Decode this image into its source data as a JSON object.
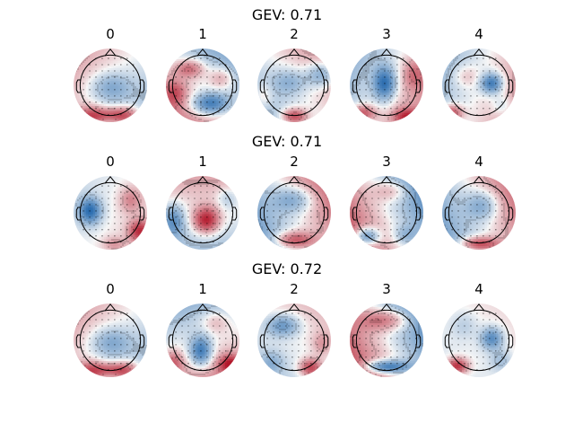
{
  "colors": {
    "neg": "#2166ac",
    "pos": "#b2182b",
    "mid": "#f7f7f7",
    "outline": "#000000"
  },
  "rows": [
    {
      "title": "GEV: 0.71",
      "maps": [
        {
          "label": "0",
          "background": [
            -0.15,
            -0.2
          ],
          "blobs": [
            [
              0,
              0.05,
              -0.45,
              0.55,
              0.4
            ],
            [
              -0.55,
              0.85,
              0.65,
              0.4,
              0.28
            ],
            [
              0.45,
              0.85,
              0.65,
              0.4,
              0.28
            ],
            [
              0,
              0.8,
              0.5,
              0.5,
              0.2
            ]
          ]
        },
        {
          "label": "1",
          "background": [
            0.35,
            -0.25
          ],
          "blobs": [
            [
              0.2,
              0.5,
              -0.9,
              0.5,
              0.3
            ],
            [
              -0.35,
              -0.45,
              0.6,
              0.4,
              0.25
            ],
            [
              0.5,
              -0.2,
              0.4,
              0.35,
              0.3
            ],
            [
              -0.75,
              0.2,
              0.5,
              0.3,
              0.35
            ]
          ]
        },
        {
          "label": "2",
          "background": [
            -0.2,
            0.25
          ],
          "blobs": [
            [
              0,
              0.85,
              0.85,
              0.35,
              0.22
            ],
            [
              0.75,
              -0.3,
              -0.6,
              0.4,
              0.35
            ],
            [
              -0.1,
              -0.1,
              -0.4,
              0.5,
              0.35
            ],
            [
              -0.85,
              0.3,
              0.3,
              0.25,
              0.35
            ]
          ]
        },
        {
          "label": "3",
          "background": [
            0.15,
            0.3
          ],
          "blobs": [
            [
              -0.05,
              -0.05,
              -0.9,
              0.3,
              0.45
            ],
            [
              -0.65,
              0.75,
              0.7,
              0.35,
              0.22
            ],
            [
              0.55,
              0.85,
              0.7,
              0.35,
              0.22
            ],
            [
              0.75,
              -0.3,
              0.4,
              0.3,
              0.4
            ]
          ]
        },
        {
          "label": "4",
          "background": [
            0.1,
            0.3
          ],
          "blobs": [
            [
              0.35,
              -0.05,
              -0.9,
              0.3,
              0.28
            ],
            [
              -0.75,
              0.75,
              0.8,
              0.3,
              0.22
            ],
            [
              -0.35,
              -0.25,
              0.25,
              0.35,
              0.3
            ],
            [
              0.65,
              0.55,
              -0.3,
              0.3,
              0.3
            ]
          ]
        }
      ]
    },
    {
      "title": "GEV: 0.71",
      "maps": [
        {
          "label": "0",
          "background": [
            0.05,
            0.1
          ],
          "blobs": [
            [
              -0.55,
              -0.05,
              -0.9,
              0.3,
              0.35
            ],
            [
              0.8,
              0.5,
              0.8,
              0.3,
              0.3
            ],
            [
              0.55,
              -0.35,
              0.4,
              0.3,
              0.35
            ],
            [
              0.1,
              0.85,
              0.3,
              0.3,
              0.2
            ]
          ]
        },
        {
          "label": "1",
          "background": [
            -0.3,
            0.0
          ],
          "blobs": [
            [
              0.1,
              0.2,
              1.0,
              0.35,
              0.35
            ],
            [
              -0.8,
              0.2,
              -0.6,
              0.3,
              0.45
            ],
            [
              0.7,
              -0.4,
              -0.3,
              0.3,
              0.3
            ]
          ]
        },
        {
          "label": "2",
          "background": [
            -0.25,
            0.45
          ],
          "blobs": [
            [
              0,
              0.75,
              0.8,
              0.55,
              0.25
            ],
            [
              0,
              -0.35,
              -0.5,
              0.55,
              0.35
            ]
          ]
        },
        {
          "label": "3",
          "background": [
            0.3,
            -0.55
          ],
          "blobs": [
            [
              -0.55,
              0.65,
              -0.95,
              0.35,
              0.25
            ],
            [
              0.5,
              0.6,
              -0.3,
              0.3,
              0.25
            ],
            [
              0.15,
              -0.6,
              0.4,
              0.5,
              0.3
            ]
          ]
        },
        {
          "label": "4",
          "background": [
            -0.2,
            0.45
          ],
          "blobs": [
            [
              0,
              0.85,
              0.85,
              0.55,
              0.2
            ],
            [
              0.1,
              -0.2,
              -0.5,
              0.45,
              0.4
            ]
          ]
        }
      ]
    },
    {
      "title": "GEV: 0.72",
      "maps": [
        {
          "label": "0",
          "background": [
            -0.15,
            -0.2
          ],
          "blobs": [
            [
              0,
              0.05,
              -0.45,
              0.55,
              0.4
            ],
            [
              -0.55,
              0.85,
              0.65,
              0.4,
              0.28
            ],
            [
              0.45,
              0.85,
              0.65,
              0.4,
              0.28
            ],
            [
              0,
              0.8,
              0.5,
              0.5,
              0.2
            ]
          ]
        },
        {
          "label": "1",
          "background": [
            0.35,
            0.1
          ],
          "blobs": [
            [
              -0.05,
              0.3,
              -0.9,
              0.3,
              0.4
            ],
            [
              0.75,
              0.65,
              0.8,
              0.3,
              0.25
            ],
            [
              -0.8,
              0.6,
              0.5,
              0.25,
              0.3
            ],
            [
              0.35,
              -0.5,
              0.3,
              0.4,
              0.3
            ]
          ]
        },
        {
          "label": "2",
          "background": [
            -0.15,
            0.1
          ],
          "blobs": [
            [
              -0.3,
              -0.4,
              -0.6,
              0.45,
              0.3
            ],
            [
              0.45,
              0.75,
              0.8,
              0.3,
              0.25
            ],
            [
              0.75,
              0.1,
              0.3,
              0.25,
              0.3
            ],
            [
              -0.6,
              0.6,
              -0.3,
              0.3,
              0.3
            ]
          ]
        },
        {
          "label": "3",
          "background": [
            0.3,
            -0.55
          ],
          "blobs": [
            [
              0,
              0.72,
              -0.95,
              0.6,
              0.18
            ],
            [
              0,
              -0.55,
              0.6,
              0.7,
              0.3
            ]
          ]
        },
        {
          "label": "4",
          "background": [
            -0.05,
            0.05
          ],
          "blobs": [
            [
              -0.6,
              0.7,
              0.9,
              0.3,
              0.22
            ],
            [
              0.35,
              -0.05,
              -0.7,
              0.3,
              0.3
            ],
            [
              0.6,
              0.55,
              -0.3,
              0.3,
              0.3
            ],
            [
              -0.4,
              -0.4,
              -0.2,
              0.35,
              0.35
            ]
          ]
        }
      ]
    }
  ]
}
